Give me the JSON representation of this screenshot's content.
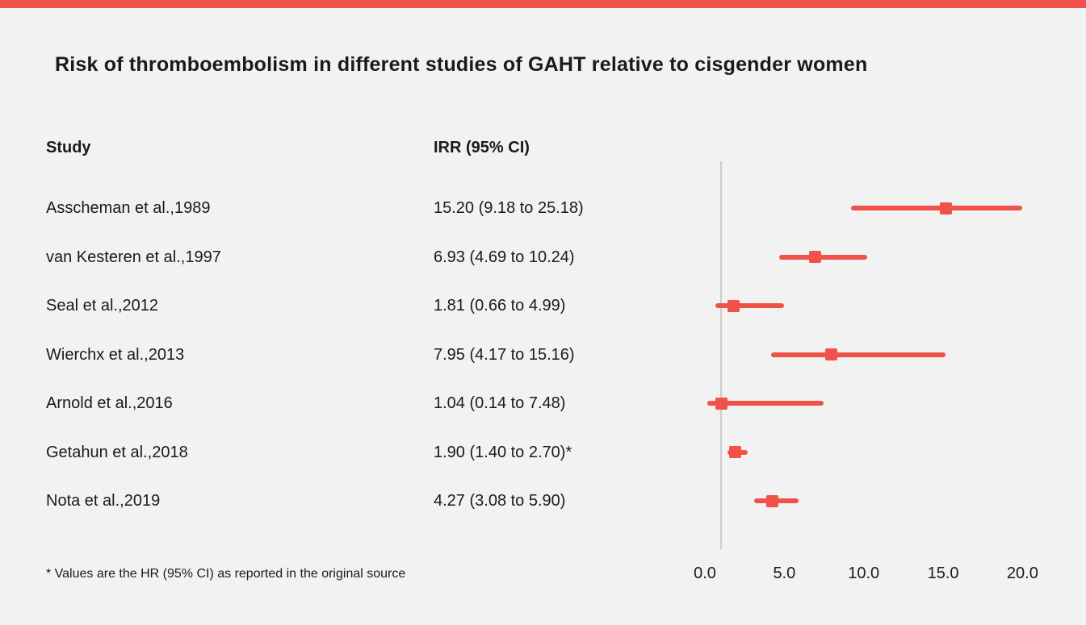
{
  "page": {
    "background_color": "#f2f2f2",
    "accent_color": "#f0524a",
    "top_bar_color": "#f0524a",
    "axis_line_color": "#cbcbcb",
    "text_color": "#1a1a1a"
  },
  "title": "Risk of thromboembolism in different studies of GAHT relative to cisgender women",
  "columns": {
    "study": "Study",
    "irr": "IRR (95% CI)"
  },
  "footnote": "* Values are the HR (95% CI) as reported in the original source",
  "chart_data": {
    "type": "scatter",
    "subtype": "forest-plot",
    "title": "Risk of thromboembolism in different studies of GAHT relative to cisgender women",
    "xlabel": "",
    "ylabel": "",
    "xlim": [
      0,
      20
    ],
    "reference_line_x": 1.0,
    "x_ticks": [
      0,
      5,
      10,
      15,
      20
    ],
    "x_tick_labels": [
      "0.0",
      "5.0",
      "10.0",
      "15.0",
      "20.0"
    ],
    "marker": "square",
    "grid": false,
    "legend": "none",
    "series": [
      {
        "study": "Asscheman et al.,1989",
        "irr_label": "15.20 (9.18 to 25.18)",
        "estimate": 15.2,
        "ci_low": 9.18,
        "ci_high": 25.18
      },
      {
        "study": "van Kesteren et al.,1997",
        "irr_label": "6.93 (4.69 to 10.24)",
        "estimate": 6.93,
        "ci_low": 4.69,
        "ci_high": 10.24
      },
      {
        "study": "Seal et al.,2012",
        "irr_label": "1.81 (0.66 to 4.99)",
        "estimate": 1.81,
        "ci_low": 0.66,
        "ci_high": 4.99
      },
      {
        "study": "Wierchx et al.,2013",
        "irr_label": "7.95 (4.17 to 15.16)",
        "estimate": 7.95,
        "ci_low": 4.17,
        "ci_high": 15.16
      },
      {
        "study": "Arnold et al.,2016",
        "irr_label": "1.04 (0.14 to 7.48)",
        "estimate": 1.04,
        "ci_low": 0.14,
        "ci_high": 7.48
      },
      {
        "study": "Getahun et al.,2018",
        "irr_label": "1.90 (1.40 to 2.70)*",
        "estimate": 1.9,
        "ci_low": 1.4,
        "ci_high": 2.7
      },
      {
        "study": "Nota et al.,2019",
        "irr_label": "4.27 (3.08 to 5.90)",
        "estimate": 4.27,
        "ci_low": 3.08,
        "ci_high": 5.9
      }
    ]
  }
}
